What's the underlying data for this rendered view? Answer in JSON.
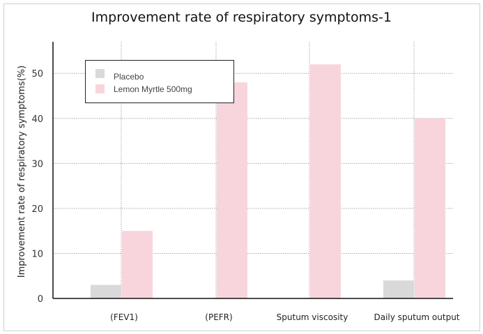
{
  "chart_data": {
    "type": "bar",
    "title": "Improvement rate of respiratory symptoms-1",
    "xlabel": "",
    "ylabel": "Improvement rate of respiratory symptoms(%)",
    "categories": [
      "(FEV1)",
      "(PEFR)",
      "Sputum viscosity",
      "Daily sputum output"
    ],
    "series": [
      {
        "name": "Placebo",
        "values": [
          3,
          0,
          0,
          4
        ],
        "color": "#d9d9d9"
      },
      {
        "name": "Lemon Myrtle  500mg",
        "values": [
          15,
          48,
          52,
          40
        ],
        "color": "#f8d5dc"
      }
    ],
    "yticks": [
      0,
      10,
      20,
      30,
      40,
      50
    ],
    "ylim": [
      0,
      57
    ],
    "grid": "dotted, horizontal and vertical",
    "legend": "top-left"
  }
}
